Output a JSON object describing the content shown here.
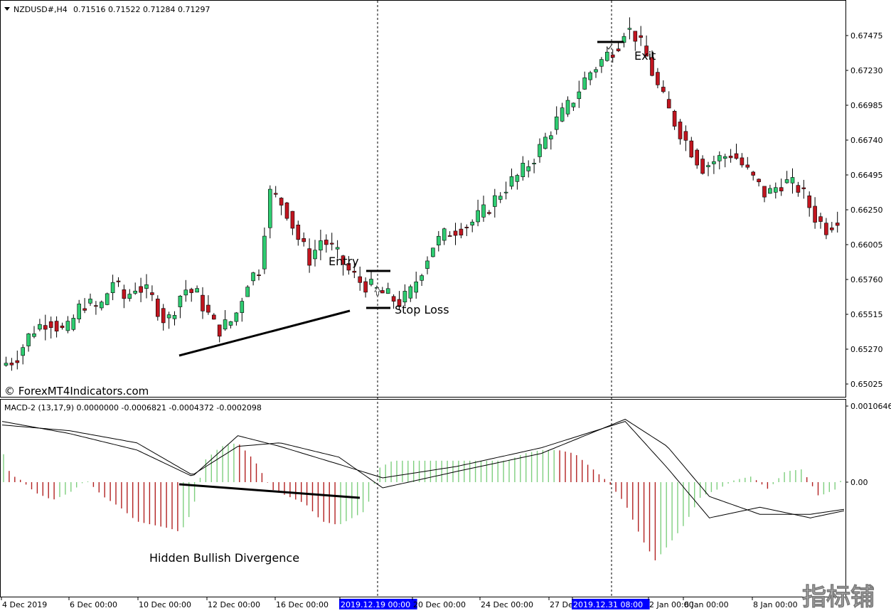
{
  "main_header": {
    "symbol": "NZDUSD#,H4",
    "ohlc": "0.71516 0.71522 0.71284 0.71297"
  },
  "indicator_header": {
    "text": "MACD-2 (13,17,9) 0.0000000 -0.0006821 -0.0004372 -0.0002098"
  },
  "watermark": "© ForexMT4Indicators.com",
  "corner_logo": "指标铺",
  "annotations": {
    "entry": "Entry",
    "stop_loss": "Stop Loss",
    "exit": "Exit",
    "divergence": "Hidden Bullish Divergence"
  },
  "colors": {
    "bull": "#2ecc71",
    "bear": "#c0151f",
    "hist_up": "#7fcf7f",
    "hist_down": "#b22222",
    "highlight": "#0000ff"
  },
  "chart_data": {
    "type": "candlestick",
    "price_axis": [
      "0.67475",
      "0.67230",
      "0.66985",
      "0.66740",
      "0.66495",
      "0.66250",
      "0.66005",
      "0.65760",
      "0.65515",
      "0.65270",
      "0.65025"
    ],
    "macd_axis": [
      "0.0010646",
      "0.00"
    ],
    "time_labels": [
      "4 Dec 2019",
      "6 Dec 00:00",
      "10 Dec 00:00",
      "12 Dec 00:00",
      "16 Dec 00:00",
      "2019.12.19 00:00",
      "20 Dec 00:00",
      "24 Dec 00:00",
      "27 Dec 00:00",
      "2019.12.31 08:00",
      "2 Jan 00:00",
      "6 Jan 00:00",
      "8 Jan 00:00"
    ],
    "highlighted_times": [
      "2019.12.19 00:00",
      "2019.12.31 08:00"
    ],
    "price_path": [
      [
        0,
        0.6515
      ],
      [
        10,
        0.652
      ],
      [
        20,
        0.654
      ],
      [
        30,
        0.6548
      ],
      [
        40,
        0.6538
      ],
      [
        50,
        0.656
      ],
      [
        60,
        0.6555
      ],
      [
        68,
        0.6575
      ],
      [
        75,
        0.6562
      ],
      [
        82,
        0.6572
      ],
      [
        90,
        0.6565
      ],
      [
        100,
        0.6545
      ],
      [
        110,
        0.657
      ],
      [
        118,
        0.6565
      ],
      [
        130,
        0.654
      ],
      [
        140,
        0.6548
      ],
      [
        148,
        0.6575
      ],
      [
        156,
        0.6585
      ],
      [
        160,
        0.6638
      ],
      [
        170,
        0.6628
      ],
      [
        178,
        0.6605
      ],
      [
        185,
        0.659
      ],
      [
        192,
        0.6605
      ],
      [
        200,
        0.6595
      ],
      [
        208,
        0.6582
      ],
      [
        214,
        0.6575
      ],
      [
        222,
        0.657
      ],
      [
        230,
        0.6565
      ],
      [
        238,
        0.656
      ],
      [
        244,
        0.6565
      ],
      [
        250,
        0.658
      ],
      [
        258,
        0.66
      ],
      [
        268,
        0.661
      ],
      [
        280,
        0.6615
      ],
      [
        290,
        0.6625
      ],
      [
        300,
        0.664
      ],
      [
        310,
        0.665
      ],
      [
        320,
        0.6665
      ],
      [
        330,
        0.6685
      ],
      [
        340,
        0.67
      ],
      [
        350,
        0.672
      ],
      [
        360,
        0.6732
      ],
      [
        368,
        0.6742
      ],
      [
        372,
        0.6753
      ],
      [
        378,
        0.6748
      ],
      [
        384,
        0.6735
      ],
      [
        392,
        0.671
      ],
      [
        400,
        0.669
      ],
      [
        410,
        0.667
      ],
      [
        418,
        0.6655
      ],
      [
        426,
        0.666
      ],
      [
        436,
        0.6665
      ],
      [
        446,
        0.665
      ],
      [
        456,
        0.6635
      ],
      [
        466,
        0.6645
      ],
      [
        476,
        0.664
      ],
      [
        486,
        0.6618
      ],
      [
        492,
        0.6612
      ],
      [
        500,
        0.6622
      ]
    ],
    "levels": {
      "entry": 0.6582,
      "stop_loss": 0.6556,
      "exit": 0.6743
    },
    "macd_main_path": [
      [
        0,
        0.00085
      ],
      [
        40,
        0.00068
      ],
      [
        80,
        0.00045
      ],
      [
        113,
        8e-05
      ],
      [
        140,
        0.00065
      ],
      [
        165,
        0.0005
      ],
      [
        200,
        0.00025
      ],
      [
        226,
        6e-05
      ],
      [
        270,
        0.00022
      ],
      [
        320,
        0.00048
      ],
      [
        370,
        0.00085
      ],
      [
        395,
        0.0002
      ],
      [
        420,
        -0.0005
      ],
      [
        450,
        -0.00035
      ],
      [
        480,
        -0.0005
      ],
      [
        500,
        -0.0004
      ]
    ],
    "macd_signal_path": [
      [
        0,
        0.0008
      ],
      [
        40,
        0.00072
      ],
      [
        80,
        0.00055
      ],
      [
        113,
        0.0001
      ],
      [
        140,
        0.0005
      ],
      [
        165,
        0.00055
      ],
      [
        200,
        0.00035
      ],
      [
        226,
        -8e-05
      ],
      [
        270,
        0.00015
      ],
      [
        320,
        0.0004
      ],
      [
        370,
        0.00088
      ],
      [
        395,
        0.0005
      ],
      [
        420,
        -0.0002
      ],
      [
        450,
        -0.00045
      ],
      [
        480,
        -0.00045
      ],
      [
        500,
        -0.00038
      ]
    ],
    "histogram": [
      [
        0,
        0.00045
      ],
      [
        5,
        0.0001
      ],
      [
        10,
        5e-05
      ],
      [
        20,
        -0.00015
      ],
      [
        30,
        -0.00025
      ],
      [
        40,
        -0.00015
      ],
      [
        50,
        3e-05
      ],
      [
        60,
        -0.0002
      ],
      [
        70,
        -0.00035
      ],
      [
        80,
        -0.00055
      ],
      [
        90,
        -0.0006
      ],
      [
        100,
        -0.00065
      ],
      [
        106,
        -0.0007
      ],
      [
        113,
        -0.0004
      ],
      [
        120,
        0.0003
      ],
      [
        130,
        0.0005
      ],
      [
        140,
        0.00055
      ],
      [
        150,
        0.0003
      ],
      [
        160,
        -0.0001
      ],
      [
        170,
        -0.0002
      ],
      [
        180,
        -0.0003
      ],
      [
        190,
        -0.00055
      ],
      [
        200,
        -0.0006
      ],
      [
        208,
        -0.0005
      ],
      [
        216,
        -0.0004
      ],
      [
        224,
        0.0002
      ],
      [
        232,
        0.0003
      ],
      [
        240,
        0.0003
      ],
      [
        250,
        0.0003
      ],
      [
        260,
        0.0003
      ],
      [
        270,
        0.0003
      ],
      [
        280,
        0.0003
      ],
      [
        290,
        0.0003
      ],
      [
        300,
        0.0003
      ],
      [
        310,
        0.0004
      ],
      [
        320,
        0.00045
      ],
      [
        330,
        0.00045
      ],
      [
        340,
        0.0004
      ],
      [
        350,
        0.0002
      ],
      [
        360,
        0.0
      ],
      [
        370,
        -0.0003
      ],
      [
        380,
        -0.0008
      ],
      [
        388,
        -0.0011
      ],
      [
        395,
        -0.0009
      ],
      [
        405,
        -0.0006
      ],
      [
        415,
        -0.0002
      ],
      [
        425,
        -0.0001
      ],
      [
        435,
        3e-05
      ],
      [
        445,
        8e-05
      ],
      [
        455,
        -0.0001
      ],
      [
        465,
        0.00015
      ],
      [
        475,
        0.00018
      ],
      [
        485,
        -0.0002
      ],
      [
        495,
        -0.0001
      ],
      [
        500,
        0.0001
      ]
    ]
  }
}
